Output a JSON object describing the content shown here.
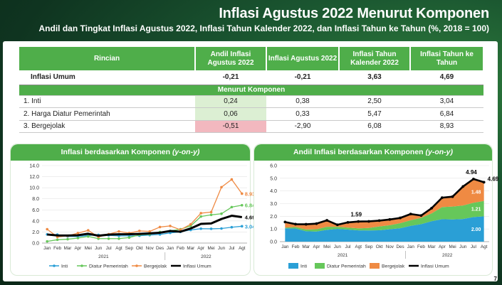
{
  "header": {
    "title": "Inflasi Agustus 2022 Menurut Komponen",
    "subtitle": "Andil dan Tingkat Inflasi Agustus 2022, Inflasi Tahun Kalender 2022, dan Inflasi Tahun ke Tahun (%, 2018 = 100)"
  },
  "table": {
    "headers": [
      "Rincian",
      "Andil Inflasi Agustus 2022",
      "Inflasi Agustus 2022",
      "Inflasi Tahun Kalender 2022",
      "Inflasi Tahun ke Tahun"
    ],
    "umum": [
      "Inflasi Umum",
      "-0,21",
      "-0,21",
      "3,63",
      "4,69"
    ],
    "section": "Menurut Komponen",
    "rows": [
      [
        "1.  Inti",
        "0,24",
        "0,38",
        "2,50",
        "3,04"
      ],
      [
        "2.  Harga Diatur Pemerintah",
        "0,06",
        "0,33",
        "5,47",
        "6,84"
      ],
      [
        "3.  Bergejolak",
        "-0,51",
        "-2,90",
        "6,08",
        "8,93"
      ]
    ]
  },
  "page_number": "7",
  "colors": {
    "inti": "#2a9fd6",
    "diatur": "#66c75a",
    "bergejolak": "#ef8a43",
    "umum": "#000000",
    "header_green": "#4fae4a"
  },
  "chart_data": [
    {
      "type": "line",
      "title": "Inflasi berdasarkan Komponen (y-on-y)",
      "categories": [
        "Jan",
        "Feb",
        "Mar",
        "Apr",
        "Mei",
        "Jun",
        "Jul",
        "Agt",
        "Sep",
        "Okt",
        "Nov",
        "Des",
        "Jan",
        "Feb",
        "Mar",
        "Apr",
        "Mei",
        "Jun",
        "Jul",
        "Agt"
      ],
      "year_labels": [
        "2021",
        "2022"
      ],
      "ylim": [
        0,
        14
      ],
      "yticks": [
        "0.0",
        "2.0",
        "4.0",
        "6.0",
        "8.0",
        "10.0",
        "12.0",
        "14.0"
      ],
      "series": [
        {
          "name": "Inti",
          "values": [
            1.56,
            1.53,
            1.21,
            1.18,
            1.37,
            1.49,
            1.4,
            1.31,
            1.3,
            1.33,
            1.44,
            1.56,
            1.84,
            2.03,
            2.37,
            2.6,
            2.58,
            2.63,
            2.86,
            3.04
          ],
          "end_label": "3.04"
        },
        {
          "name": "Diatur Pemerintah",
          "values": [
            0.3,
            0.6,
            0.7,
            0.9,
            1.2,
            0.8,
            0.8,
            0.8,
            1.0,
            1.5,
            1.6,
            2.0,
            2.2,
            2.5,
            3.1,
            4.8,
            5.1,
            5.3,
            6.5,
            6.84
          ],
          "end_label": "6.84"
        },
        {
          "name": "Bergejolak",
          "values": [
            2.5,
            1.1,
            1.3,
            1.8,
            2.3,
            1.1,
            1.6,
            2.1,
            1.8,
            2.2,
            2.1,
            2.9,
            3.1,
            2.4,
            3.4,
            5.4,
            5.6,
            10.1,
            11.5,
            8.93
          ],
          "end_label": "8.93"
        },
        {
          "name": "Inflasi Umum",
          "values": [
            1.55,
            1.38,
            1.37,
            1.42,
            1.68,
            1.33,
            1.52,
            1.59,
            1.6,
            1.66,
            1.75,
            1.87,
            2.18,
            2.06,
            2.64,
            3.47,
            3.55,
            4.35,
            4.94,
            4.69
          ],
          "end_label": "4.69"
        }
      ],
      "legend": [
        "Inti",
        "Diatur Pemerintah",
        "Bergejolak",
        "Inflasi Umum"
      ]
    },
    {
      "type": "area",
      "title": "Andil Inflasi berdasarkan Komponen (y-on-y)",
      "categories": [
        "Jan",
        "Feb",
        "Mar",
        "Apr",
        "Mei",
        "Jun",
        "Jul",
        "Agt",
        "Sep",
        "Okt",
        "Nov",
        "Des",
        "Jan",
        "Feb",
        "Mar",
        "Apr",
        "Mei",
        "Jun",
        "Jul",
        "Agt"
      ],
      "year_labels": [
        "2021",
        "2022"
      ],
      "ylim": [
        0,
        6
      ],
      "yticks": [
        "0.0",
        "1.0",
        "2.0",
        "3.0",
        "4.0",
        "5.0",
        "6.0"
      ],
      "series": [
        {
          "name": "Inti",
          "values": [
            1.05,
            1.04,
            0.82,
            0.8,
            0.93,
            1.01,
            0.95,
            0.89,
            0.88,
            0.9,
            0.98,
            1.06,
            1.25,
            1.38,
            1.61,
            1.77,
            1.75,
            1.79,
            1.94,
            2.0
          ]
        },
        {
          "name": "Diatur Pemerintah",
          "values": [
            0.06,
            0.12,
            0.14,
            0.18,
            0.24,
            0.16,
            0.16,
            0.16,
            0.2,
            0.3,
            0.32,
            0.4,
            0.44,
            0.5,
            0.62,
            0.96,
            1.02,
            1.06,
            1.13,
            1.21
          ]
        },
        {
          "name": "Bergejolak",
          "values": [
            0.44,
            0.22,
            0.41,
            0.44,
            0.51,
            0.16,
            0.41,
            0.54,
            0.52,
            0.46,
            0.45,
            0.41,
            0.49,
            0.18,
            0.41,
            0.74,
            0.78,
            1.5,
            1.87,
            1.48
          ]
        },
        {
          "name": "Inflasi Umum",
          "values": [
            1.55,
            1.38,
            1.37,
            1.42,
            1.68,
            1.33,
            1.52,
            1.59,
            1.6,
            1.66,
            1.75,
            1.87,
            2.18,
            2.06,
            2.64,
            3.47,
            3.55,
            4.35,
            4.94,
            4.69
          ]
        }
      ],
      "annotations": [
        {
          "label": "1.59",
          "index": 7
        },
        {
          "label": "4.94",
          "index": 18
        },
        {
          "label": "4.69",
          "index": 19
        }
      ],
      "stack_labels": {
        "Inti": "2.00",
        "Diatur Pemerintah": "1.21",
        "Bergejolak": "1.48"
      },
      "legend": [
        "Inti",
        "Diatur Pemerintah",
        "Bergejolak",
        "Inflasi Umum"
      ]
    }
  ]
}
